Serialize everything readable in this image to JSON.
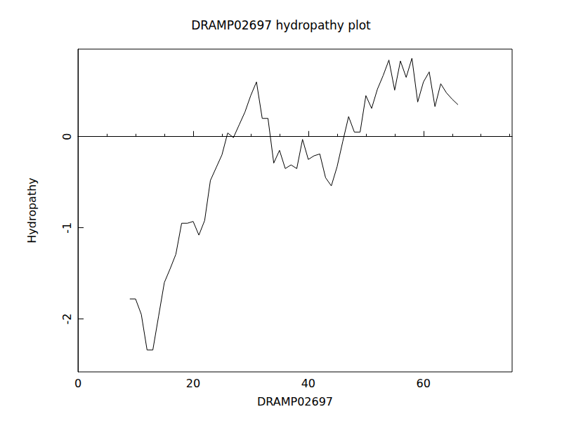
{
  "chart_data": {
    "type": "line",
    "title": "DRAMP02697 hydropathy plot",
    "x_label": "DRAMP02697",
    "y_label": "Hydropathy",
    "x": [
      9,
      10,
      11,
      12,
      13,
      14,
      15,
      16,
      17,
      18,
      19,
      20,
      21,
      22,
      23,
      24,
      25,
      26,
      27,
      28,
      29,
      30,
      31,
      32,
      33,
      34,
      35,
      36,
      37,
      38,
      39,
      40,
      41,
      42,
      43,
      44,
      45,
      46,
      47,
      48,
      49,
      50,
      51,
      52,
      53,
      54,
      55,
      56,
      57,
      58,
      59,
      60,
      61,
      62,
      63,
      64,
      65,
      66
    ],
    "values": [
      -1.78,
      -1.78,
      -1.95,
      -2.34,
      -2.34,
      -1.97,
      -1.6,
      -1.45,
      -1.29,
      -0.95,
      -0.95,
      -0.93,
      -1.08,
      -0.92,
      -0.48,
      -0.34,
      -0.2,
      0.04,
      -0.01,
      0.13,
      0.27,
      0.45,
      0.6,
      0.2,
      0.2,
      -0.29,
      -0.15,
      -0.35,
      -0.31,
      -0.35,
      -0.03,
      -0.25,
      -0.21,
      -0.19,
      -0.45,
      -0.54,
      -0.33,
      -0.05,
      0.22,
      0.05,
      0.05,
      0.45,
      0.31,
      0.52,
      0.67,
      0.84,
      0.51,
      0.83,
      0.65,
      0.86,
      0.38,
      0.6,
      0.71,
      0.33,
      0.58,
      0.48,
      0.41,
      0.35
    ],
    "color": "#000000",
    "xlim": [
      0,
      75.4
    ],
    "xticks": [
      0,
      20,
      40,
      60
    ],
    "ylim": [
      -2.58,
      0.96
    ],
    "yticks": [
      -2,
      -1,
      0
    ],
    "grid": false
  }
}
